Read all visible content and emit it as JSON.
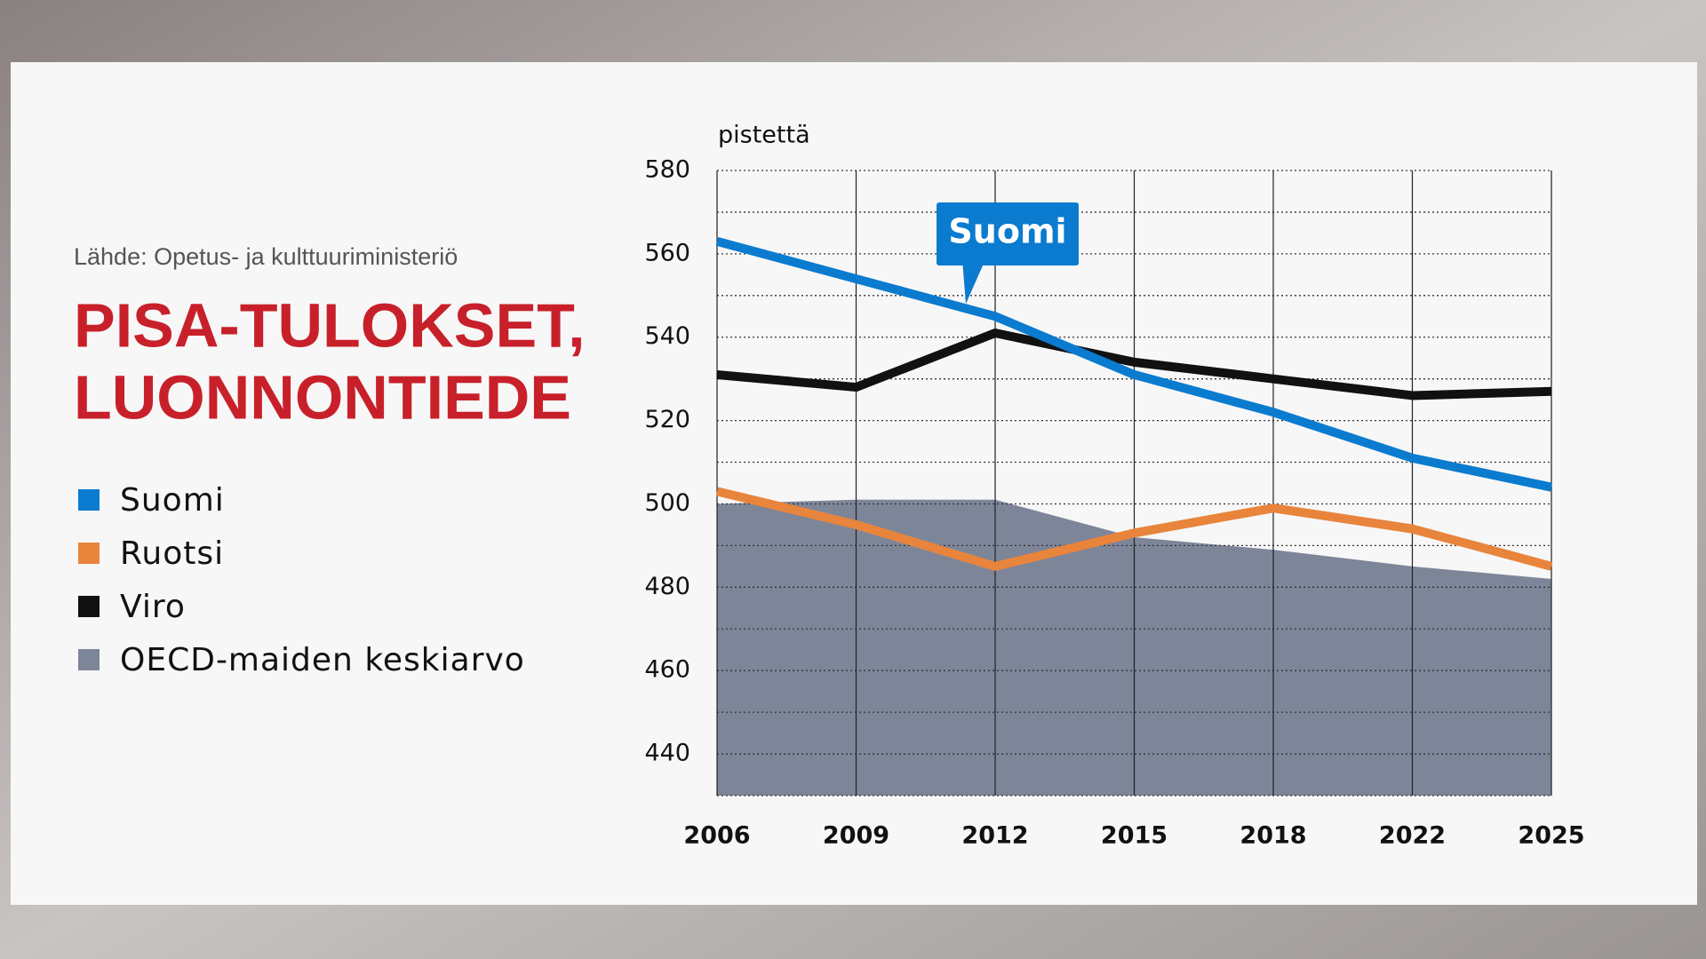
{
  "chart_data": {
    "type": "line",
    "source": "Lähde: Opetus- ja kulttuuriministeriö",
    "title_lines": [
      "PISA-TULOKSET,",
      "LUONNONTIEDE"
    ],
    "y_label": "pistettä",
    "categories": [
      "2006",
      "2009",
      "2012",
      "2015",
      "2018",
      "2022",
      "2025"
    ],
    "series": [
      {
        "name": "Suomi",
        "color": "#0b7bcf",
        "values": [
          563,
          554,
          545,
          531,
          522,
          511,
          504
        ]
      },
      {
        "name": "Ruotsi",
        "color": "#e8843c",
        "values": [
          503,
          495,
          485,
          493,
          499,
          494,
          485
        ]
      },
      {
        "name": "Viro",
        "color": "#111111",
        "values": [
          531,
          528,
          541,
          534,
          530,
          526,
          527
        ]
      },
      {
        "name": "OECD-maiden keskiarvo",
        "color": "#7d8599",
        "kind": "area",
        "values": [
          500,
          501,
          501,
          492,
          489,
          485,
          482
        ]
      }
    ],
    "annotation": {
      "series": 0,
      "at": 2
    },
    "ylim": [
      430,
      580
    ],
    "yticks": [
      440,
      460,
      480,
      500,
      520,
      540,
      560,
      580
    ],
    "minor_yticks": [
      430,
      450,
      470,
      490,
      510,
      530,
      550,
      570
    ],
    "grid": true
  }
}
